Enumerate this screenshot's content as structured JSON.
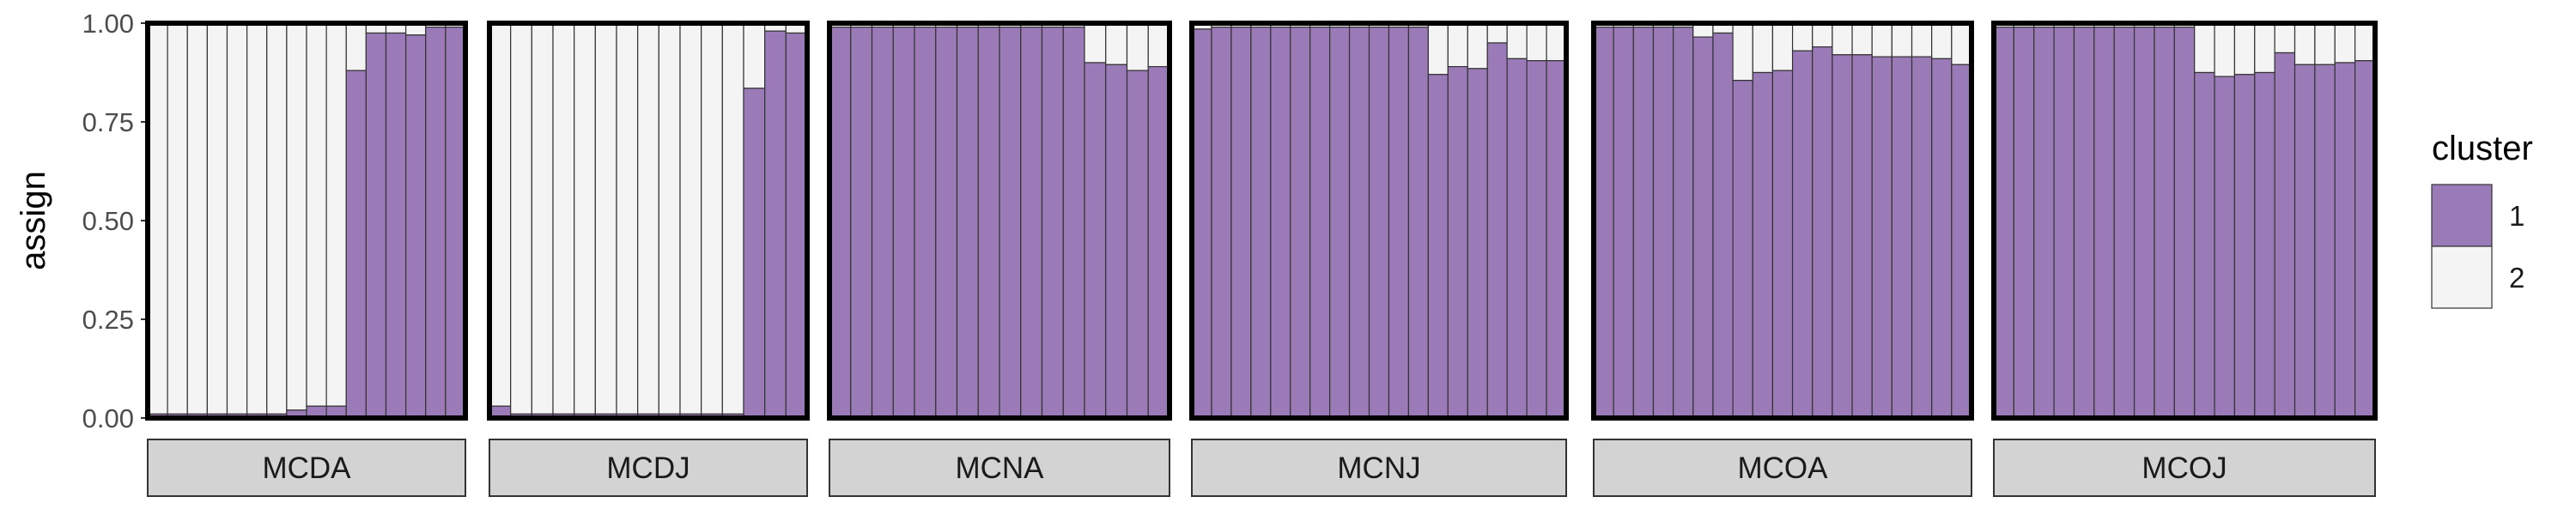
{
  "chart_data": {
    "type": "bar",
    "subtype": "stacked-proportion-faceted",
    "ylabel": "assign",
    "ylim": [
      0,
      1
    ],
    "yticks": [
      "0.00",
      "0.25",
      "0.50",
      "0.75",
      "1.00"
    ],
    "grid": false,
    "legend": {
      "title": "cluster",
      "placement": "right",
      "entries": [
        {
          "label": "1",
          "color": "#9b7ab8"
        },
        {
          "label": "2",
          "color": "#f4f4f4"
        }
      ]
    },
    "facets": [
      {
        "name": "MCDA",
        "cluster1": [
          0.01,
          0.01,
          0.01,
          0.01,
          0.01,
          0.01,
          0.01,
          0.02,
          0.03,
          0.03,
          0.88,
          0.975,
          0.975,
          0.97,
          0.99,
          0.99
        ]
      },
      {
        "name": "MCDJ",
        "cluster1": [
          0.03,
          0.01,
          0.01,
          0.01,
          0.01,
          0.01,
          0.01,
          0.01,
          0.01,
          0.01,
          0.01,
          0.01,
          0.835,
          0.98,
          0.975
        ]
      },
      {
        "name": "MCNA",
        "cluster1": [
          0.99,
          0.99,
          0.99,
          0.99,
          0.99,
          0.99,
          0.99,
          0.99,
          0.99,
          0.99,
          0.99,
          0.99,
          0.9,
          0.895,
          0.88,
          0.89
        ]
      },
      {
        "name": "MCNJ",
        "cluster1": [
          0.985,
          0.99,
          0.99,
          0.99,
          0.99,
          0.99,
          0.99,
          0.99,
          0.99,
          0.99,
          0.99,
          0.99,
          0.87,
          0.89,
          0.885,
          0.95,
          0.91,
          0.905,
          0.905
        ]
      },
      {
        "name": "MCOA",
        "cluster1": [
          0.99,
          0.99,
          0.99,
          0.99,
          0.99,
          0.965,
          0.975,
          0.855,
          0.875,
          0.88,
          0.93,
          0.94,
          0.92,
          0.92,
          0.915,
          0.915,
          0.915,
          0.91,
          0.895
        ]
      },
      {
        "name": "MCOJ",
        "cluster1": [
          0.99,
          0.99,
          0.99,
          0.99,
          0.99,
          0.99,
          0.99,
          0.99,
          0.99,
          0.99,
          0.875,
          0.865,
          0.87,
          0.875,
          0.925,
          0.895,
          0.895,
          0.9,
          0.905
        ]
      }
    ]
  }
}
